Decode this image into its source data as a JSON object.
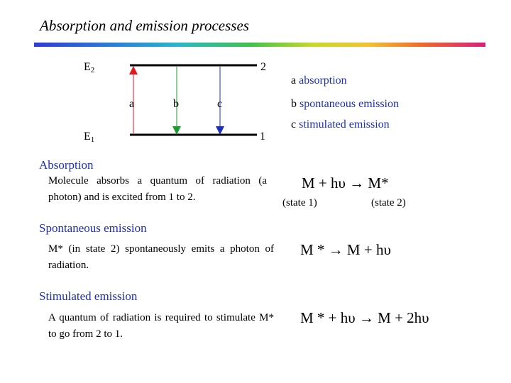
{
  "title": "Absorption and emission processes",
  "diagram": {
    "upper_level_label": "E",
    "upper_level_sub": "2",
    "lower_level_label": "E",
    "lower_level_sub": "1",
    "upper_level_number": "2",
    "lower_level_number": "1",
    "transitions": [
      {
        "label": "a",
        "color": "#e0191d"
      },
      {
        "label": "b",
        "color": "#1f9a30"
      },
      {
        "label": "c",
        "color": "#1c2fb5"
      }
    ]
  },
  "legend": [
    {
      "letter": "a",
      "text": "absorption"
    },
    {
      "letter": "b",
      "text": "spontaneous emission"
    },
    {
      "letter": "c",
      "text": "stimulated emission"
    }
  ],
  "sections": {
    "absorption": {
      "heading": "Absorption",
      "description": "Molecule absorbs a quantum of radiation (a photon) and is excited from 1 to 2.",
      "equation": "M + hυ → M*",
      "state_left": "(state 1)",
      "state_right": "(state 2)"
    },
    "spontaneous": {
      "heading": "Spontaneous emission",
      "description": "M* (in state 2) spontaneously emits a photon of radiation.",
      "equation": "M * → M + hυ"
    },
    "stimulated": {
      "heading": "Stimulated emission",
      "description": "A quantum of radiation is required to stimulate M* to go from 2 to 1.",
      "equation": "M * + hυ → M + 2hυ"
    }
  }
}
